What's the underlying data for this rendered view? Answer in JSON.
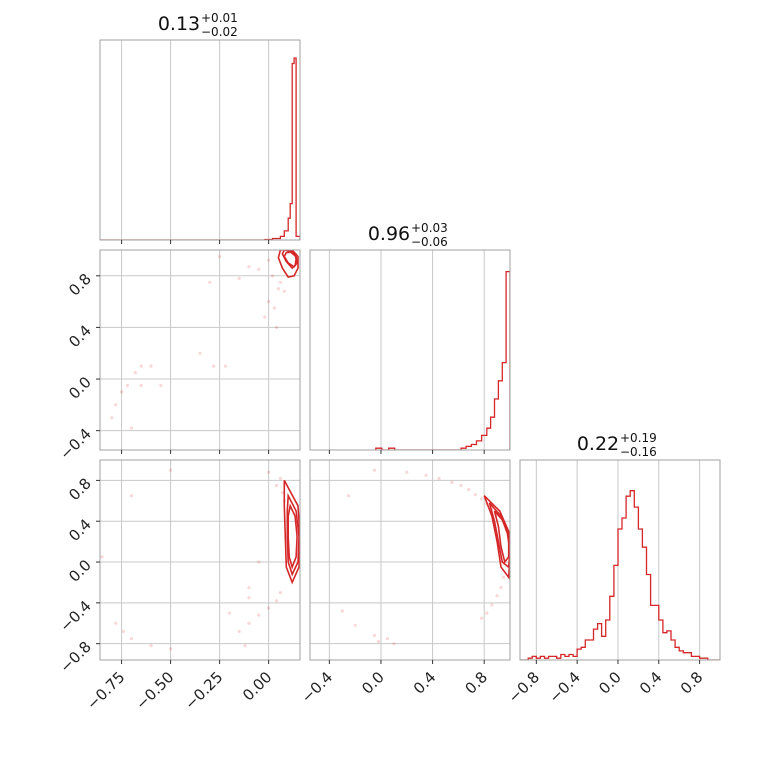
{
  "chart_data": {
    "type": "corner",
    "color": "#d62728",
    "grid": true,
    "parameters": [
      {
        "title": {
          "median": "0.13",
          "plus": "+0.01",
          "minus": "−0.02"
        },
        "range": [
          -0.86,
          0.16
        ],
        "ticks": [
          -0.75,
          -0.5,
          -0.25,
          0.0
        ],
        "tick_labels": [
          "−0.75",
          "−0.50",
          "−0.25",
          "0.00"
        ],
        "y_ticks": [],
        "y_tick_labels": []
      },
      {
        "title": {
          "median": "0.96",
          "plus": "+0.03",
          "minus": "−0.06"
        },
        "range": [
          -0.55,
          1.0
        ],
        "ticks": [
          -0.4,
          0.0,
          0.4,
          0.8
        ],
        "tick_labels": [
          "−0.4",
          "0.0",
          "0.4",
          "0.8"
        ],
        "y_ticks": [
          -0.4,
          0.0,
          0.4,
          0.8
        ],
        "y_tick_labels": [
          "−0.4",
          "0.0",
          "0.4",
          "0.8"
        ]
      },
      {
        "title": {
          "median": "0.22",
          "plus": "+0.19",
          "minus": "−0.16"
        },
        "range": [
          -0.96,
          1.0
        ],
        "ticks": [
          -0.8,
          -0.4,
          0.0,
          0.4,
          0.8
        ],
        "tick_labels": [
          "−0.8",
          "−0.4",
          "0.0",
          "0.4",
          "0.8"
        ],
        "y_ticks": [
          -0.8,
          -0.4,
          0.0,
          0.4,
          0.8
        ],
        "y_tick_labels": [
          "−0.8",
          "−0.4",
          "0.0",
          "0.4",
          "0.8"
        ]
      }
    ],
    "histograms": [
      {
        "edges": [
          -0.02,
          0.02,
          0.06,
          0.08,
          0.1,
          0.11,
          0.12,
          0.13,
          0.14,
          0.16
        ],
        "heights": [
          0.003,
          0.008,
          0.02,
          0.05,
          0.12,
          0.2,
          0.97,
          1.0,
          0.02
        ]
      },
      {
        "edges": [
          0.62,
          0.66,
          0.7,
          0.74,
          0.78,
          0.82,
          0.85,
          0.88,
          0.91,
          0.94,
          0.97,
          1.0
        ],
        "heights": [
          0.01,
          0.02,
          0.03,
          0.05,
          0.08,
          0.12,
          0.18,
          0.28,
          0.38,
          0.48,
          0.98
        ],
        "tail": [
          [
            -0.04,
            0.01
          ],
          [
            0.06,
            0.01
          ]
        ]
      },
      {
        "edges": [
          -0.96,
          -0.88,
          -0.84,
          -0.8,
          -0.76,
          -0.72,
          -0.68,
          -0.64,
          -0.6,
          -0.56,
          -0.52,
          -0.48,
          -0.44,
          -0.4,
          -0.36,
          -0.32,
          -0.28,
          -0.24,
          -0.2,
          -0.16,
          -0.12,
          -0.08,
          -0.04,
          0.0,
          0.04,
          0.08,
          0.12,
          0.16,
          0.2,
          0.24,
          0.28,
          0.32,
          0.36,
          0.4,
          0.44,
          0.48,
          0.52,
          0.56,
          0.6,
          0.64,
          0.68,
          0.72,
          0.76,
          0.8,
          0.88,
          1.0
        ],
        "heights": [
          0.0,
          0.01,
          0.02,
          0.01,
          0.02,
          0.01,
          0.02,
          0.02,
          0.01,
          0.03,
          0.02,
          0.03,
          0.02,
          0.06,
          0.07,
          0.11,
          0.11,
          0.17,
          0.2,
          0.13,
          0.22,
          0.35,
          0.52,
          0.72,
          0.78,
          0.9,
          0.93,
          0.84,
          0.72,
          0.62,
          0.47,
          0.3,
          0.3,
          0.22,
          0.15,
          0.16,
          0.11,
          0.07,
          0.05,
          0.04,
          0.04,
          0.02,
          0.02,
          0.01,
          0.0
        ]
      }
    ],
    "contours": [
      {
        "row": 1,
        "col": 0,
        "levels": [
          [
            [
              0.135,
              0.96
            ],
            [
              0.12,
              0.99
            ],
            [
              0.08,
              1.0
            ],
            [
              0.07,
              0.97
            ],
            [
              0.09,
              0.91
            ],
            [
              0.12,
              0.86
            ],
            [
              0.135,
              0.88
            ],
            [
              0.14,
              0.93
            ],
            [
              0.135,
              0.96
            ]
          ],
          [
            [
              0.14,
              0.95
            ],
            [
              0.11,
              0.985
            ],
            [
              0.09,
              0.98
            ],
            [
              0.08,
              0.95
            ],
            [
              0.1,
              0.9
            ],
            [
              0.13,
              0.87
            ],
            [
              0.145,
              0.9
            ],
            [
              0.14,
              0.95
            ]
          ],
          [
            [
              0.15,
              0.95
            ],
            [
              0.12,
              1.0
            ],
            [
              0.06,
              1.0
            ],
            [
              0.05,
              0.94
            ],
            [
              0.07,
              0.86
            ],
            [
              0.1,
              0.79
            ],
            [
              0.13,
              0.8
            ],
            [
              0.15,
              0.86
            ],
            [
              0.15,
              0.95
            ]
          ]
        ]
      },
      {
        "row": 2,
        "col": 0,
        "levels": [
          [
            [
              0.11,
              0.55
            ],
            [
              0.135,
              0.45
            ],
            [
              0.145,
              0.25
            ],
            [
              0.14,
              0.05
            ],
            [
              0.12,
              -0.05
            ],
            [
              0.105,
              0.05
            ],
            [
              0.1,
              0.25
            ],
            [
              0.1,
              0.45
            ],
            [
              0.11,
              0.55
            ]
          ],
          [
            [
              0.1,
              0.65
            ],
            [
              0.14,
              0.5
            ],
            [
              0.155,
              0.25
            ],
            [
              0.15,
              0.0
            ],
            [
              0.12,
              -0.12
            ],
            [
              0.1,
              0.0
            ],
            [
              0.095,
              0.25
            ],
            [
              0.095,
              0.5
            ],
            [
              0.1,
              0.65
            ]
          ],
          [
            [
              0.08,
              0.8
            ],
            [
              0.15,
              0.55
            ],
            [
              0.16,
              0.25
            ],
            [
              0.155,
              -0.05
            ],
            [
              0.12,
              -0.2
            ],
            [
              0.09,
              -0.05
            ],
            [
              0.085,
              0.25
            ],
            [
              0.08,
              0.55
            ],
            [
              0.08,
              0.8
            ]
          ]
        ]
      },
      {
        "row": 2,
        "col": 1,
        "levels": [
          [
            [
              0.88,
              0.5
            ],
            [
              0.95,
              0.4
            ],
            [
              0.99,
              0.25
            ],
            [
              0.99,
              0.05
            ],
            [
              0.96,
              0.0
            ],
            [
              0.93,
              0.15
            ],
            [
              0.91,
              0.35
            ],
            [
              0.88,
              0.5
            ]
          ],
          [
            [
              0.84,
              0.58
            ],
            [
              0.93,
              0.45
            ],
            [
              0.98,
              0.28
            ],
            [
              1.0,
              0.1
            ],
            [
              0.99,
              -0.05
            ],
            [
              0.94,
              0.0
            ],
            [
              0.91,
              0.2
            ],
            [
              0.88,
              0.4
            ],
            [
              0.84,
              0.58
            ]
          ],
          [
            [
              0.8,
              0.65
            ],
            [
              0.92,
              0.5
            ],
            [
              0.99,
              0.3
            ],
            [
              1.0,
              0.05
            ],
            [
              0.99,
              -0.15
            ],
            [
              0.93,
              -0.05
            ],
            [
              0.9,
              0.2
            ],
            [
              0.86,
              0.45
            ],
            [
              0.8,
              0.65
            ]
          ]
        ]
      }
    ],
    "scatter": [
      {
        "row": 1,
        "col": 0,
        "points": [
          [
            0.0,
            0.92
          ],
          [
            -0.05,
            0.85
          ],
          [
            0.02,
            0.8
          ],
          [
            0.05,
            0.7
          ],
          [
            -0.15,
            0.78
          ],
          [
            -0.3,
            0.75
          ],
          [
            0.0,
            0.6
          ],
          [
            0.03,
            0.55
          ],
          [
            -0.02,
            0.48
          ],
          [
            0.04,
            0.4
          ],
          [
            -0.6,
            0.1
          ],
          [
            -0.65,
            0.1
          ],
          [
            -0.68,
            0.05
          ],
          [
            -0.72,
            -0.05
          ],
          [
            -0.75,
            -0.1
          ],
          [
            -0.78,
            -0.2
          ],
          [
            -0.8,
            -0.3
          ],
          [
            -0.65,
            -0.05
          ],
          [
            -0.55,
            -0.05
          ],
          [
            -0.35,
            0.2
          ],
          [
            -0.28,
            0.1
          ],
          [
            -0.22,
            0.1
          ],
          [
            -0.7,
            -0.38
          ],
          [
            0.06,
            0.75
          ],
          [
            0.08,
            0.68
          ],
          [
            -0.1,
            0.87
          ],
          [
            0.1,
            0.98
          ],
          [
            -0.25,
            0.95
          ]
        ]
      },
      {
        "row": 2,
        "col": 0,
        "points": [
          [
            -0.5,
            0.9
          ],
          [
            -0.7,
            0.65
          ],
          [
            0.0,
            0.88
          ],
          [
            0.04,
            0.75
          ],
          [
            0.06,
            0.82
          ],
          [
            0.07,
            0.68
          ],
          [
            0.08,
            0.6
          ],
          [
            0.06,
            -0.3
          ],
          [
            0.04,
            -0.38
          ],
          [
            0.0,
            -0.45
          ],
          [
            -0.05,
            -0.52
          ],
          [
            -0.1,
            -0.6
          ],
          [
            -0.15,
            -0.68
          ],
          [
            -0.2,
            -0.5
          ],
          [
            -0.1,
            -0.35
          ],
          [
            -0.78,
            -0.6
          ],
          [
            -0.74,
            -0.68
          ],
          [
            -0.7,
            -0.75
          ],
          [
            -0.6,
            -0.82
          ],
          [
            -0.5,
            -0.85
          ],
          [
            -0.05,
            0.0
          ],
          [
            -0.1,
            -0.25
          ],
          [
            -0.85,
            0.05
          ],
          [
            -0.12,
            -0.82
          ]
        ]
      },
      {
        "row": 2,
        "col": 1,
        "points": [
          [
            -0.05,
            0.9
          ],
          [
            0.2,
            0.88
          ],
          [
            0.35,
            0.85
          ],
          [
            0.45,
            0.82
          ],
          [
            0.55,
            0.78
          ],
          [
            0.62,
            0.75
          ],
          [
            0.68,
            0.71
          ],
          [
            0.73,
            0.66
          ],
          [
            0.78,
            0.62
          ],
          [
            0.82,
            0.57
          ],
          [
            0.86,
            0.52
          ],
          [
            0.9,
            0.46
          ],
          [
            0.95,
            -0.15
          ],
          [
            0.93,
            -0.25
          ],
          [
            0.9,
            -0.33
          ],
          [
            0.86,
            -0.42
          ],
          [
            0.82,
            -0.5
          ],
          [
            0.78,
            -0.55
          ],
          [
            -0.25,
            0.65
          ],
          [
            -0.3,
            -0.48
          ],
          [
            -0.2,
            -0.62
          ],
          [
            -0.05,
            -0.72
          ],
          [
            0.05,
            -0.75
          ],
          [
            0.1,
            -0.8
          ],
          [
            -0.02,
            -0.78
          ]
        ]
      }
    ]
  }
}
